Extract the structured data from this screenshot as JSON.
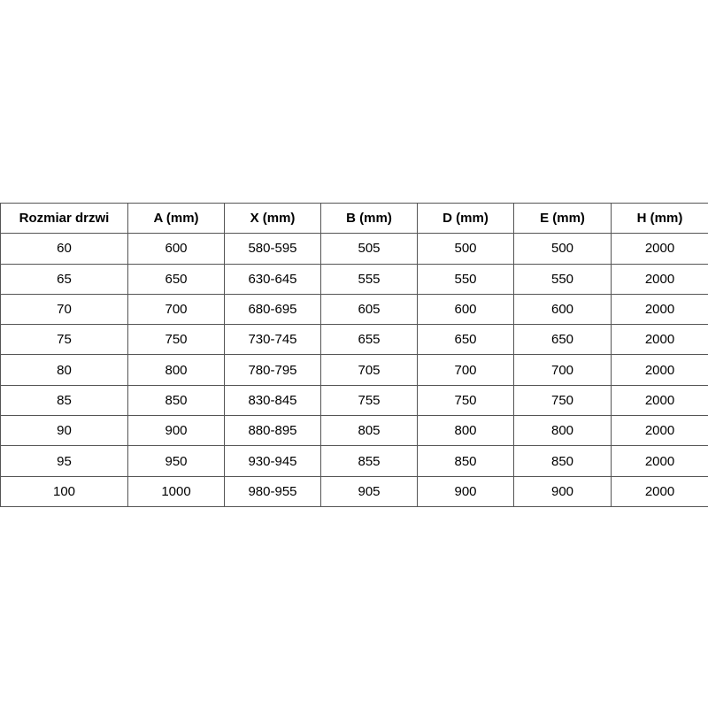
{
  "table": {
    "headers": [
      "Rozmiar drzwi",
      "A (mm)",
      "X (mm)",
      "B (mm)",
      "D (mm)",
      "E (mm)",
      "H (mm)"
    ],
    "rows": [
      [
        "60",
        "600",
        "580-595",
        "505",
        "500",
        "500",
        "2000"
      ],
      [
        "65",
        "650",
        "630-645",
        "555",
        "550",
        "550",
        "2000"
      ],
      [
        "70",
        "700",
        "680-695",
        "605",
        "600",
        "600",
        "2000"
      ],
      [
        "75",
        "750",
        "730-745",
        "655",
        "650",
        "650",
        "2000"
      ],
      [
        "80",
        "800",
        "780-795",
        "705",
        "700",
        "700",
        "2000"
      ],
      [
        "85",
        "850",
        "830-845",
        "755",
        "750",
        "750",
        "2000"
      ],
      [
        "90",
        "900",
        "880-895",
        "805",
        "800",
        "800",
        "2000"
      ],
      [
        "95",
        "950",
        "930-945",
        "855",
        "850",
        "850",
        "2000"
      ],
      [
        "100",
        "1000",
        "980-955",
        "905",
        "900",
        "900",
        "2000"
      ]
    ]
  }
}
